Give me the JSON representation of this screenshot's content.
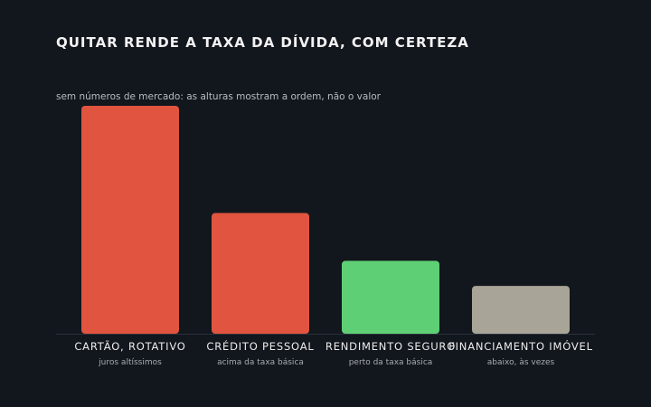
{
  "chart_data": {
    "type": "bar",
    "title": "QUITAR RENDE A TAXA DA DÍVIDA, COM CERTEZA",
    "subtitle": "sem números de mercado: as alturas mostram a ordem, não o valor",
    "xlabel": "",
    "ylabel": "",
    "grid": false,
    "categories": [
      "CARTÃO, ROTATIVO",
      "CRÉDITO PESSOAL",
      "RENDIMENTO SEGURO",
      "FINANCIAMENTO IMÓVEL"
    ],
    "category_notes": [
      "juros altíssimos",
      "acima da taxa básica",
      "perto da taxa básica",
      "abaixo, às vezes"
    ],
    "values": [
      100,
      53,
      32,
      21
    ],
    "ylim": [
      0,
      100
    ],
    "colors": [
      "#e05440",
      "#e05440",
      "#5fcf75",
      "#a8a598"
    ]
  }
}
